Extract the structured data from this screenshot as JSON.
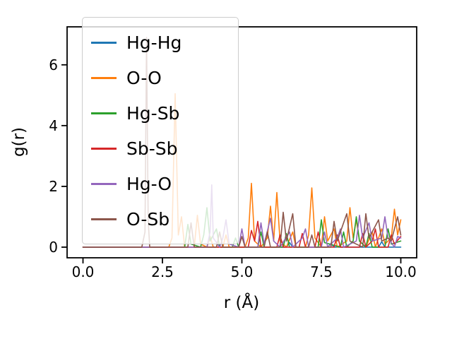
{
  "chart_data": {
    "type": "line",
    "title": "",
    "xlabel": "r (Å)",
    "ylabel": "g(r)",
    "xlim": [
      -0.5,
      10.5
    ],
    "ylim": [
      -0.35,
      7.25
    ],
    "xticks": [
      0.0,
      2.5,
      5.0,
      7.5,
      10.0
    ],
    "xtick_labels": [
      "0.0",
      "2.5",
      "5.0",
      "7.5",
      "10.0"
    ],
    "yticks": [
      0,
      2,
      4,
      6
    ],
    "ytick_labels": [
      "0",
      "2",
      "4",
      "6"
    ],
    "grid": false,
    "legend": {
      "position": "upper left",
      "framealpha": 0.8
    },
    "series": [
      {
        "name": "Hg-Hg",
        "color": "#1f77b4",
        "points": [
          [
            0,
            0
          ],
          [
            6.4,
            0
          ],
          [
            6.5,
            0.15
          ],
          [
            6.6,
            0
          ],
          [
            7.7,
            0
          ],
          [
            7.8,
            0.12
          ],
          [
            7.9,
            0
          ],
          [
            9.3,
            0
          ],
          [
            9.4,
            0.18
          ],
          [
            9.5,
            0
          ],
          [
            10,
            0
          ]
        ]
      },
      {
        "name": "O-O",
        "color": "#ff7f0e",
        "points": [
          [
            0,
            0
          ],
          [
            2.7,
            0
          ],
          [
            2.8,
            0.3
          ],
          [
            2.9,
            5.05
          ],
          [
            3.0,
            0.4
          ],
          [
            3.1,
            1.0
          ],
          [
            3.2,
            0
          ],
          [
            3.5,
            0
          ],
          [
            3.6,
            1.05
          ],
          [
            3.7,
            0.1
          ],
          [
            3.9,
            0
          ],
          [
            4.0,
            0.35
          ],
          [
            4.1,
            0
          ],
          [
            4.4,
            0
          ],
          [
            4.5,
            0.4
          ],
          [
            4.6,
            0
          ],
          [
            5.1,
            0
          ],
          [
            5.2,
            0.3
          ],
          [
            5.3,
            2.1
          ],
          [
            5.4,
            0.2
          ],
          [
            5.6,
            0
          ],
          [
            5.8,
            0.3
          ],
          [
            5.9,
            1.35
          ],
          [
            6.0,
            0.2
          ],
          [
            6.1,
            1.8
          ],
          [
            6.2,
            0.2
          ],
          [
            6.4,
            0
          ],
          [
            6.6,
            0.5
          ],
          [
            6.7,
            0
          ],
          [
            7.0,
            0
          ],
          [
            7.1,
            0.4
          ],
          [
            7.2,
            1.95
          ],
          [
            7.3,
            0.3
          ],
          [
            7.5,
            0
          ],
          [
            7.6,
            1.0
          ],
          [
            7.7,
            0.2
          ],
          [
            7.9,
            0.6
          ],
          [
            8.0,
            0
          ],
          [
            8.3,
            0.2
          ],
          [
            8.4,
            1.3
          ],
          [
            8.5,
            0.3
          ],
          [
            8.6,
            0.9
          ],
          [
            8.7,
            0.2
          ],
          [
            8.9,
            0
          ],
          [
            9.1,
            0.5
          ],
          [
            9.2,
            0
          ],
          [
            9.4,
            0.6
          ],
          [
            9.5,
            0.1
          ],
          [
            9.7,
            0.3
          ],
          [
            9.8,
            1.25
          ],
          [
            9.9,
            0.4
          ],
          [
            10,
            0.9
          ]
        ]
      },
      {
        "name": "Hg-Sb",
        "color": "#2ca02c",
        "points": [
          [
            0,
            0
          ],
          [
            3.2,
            0
          ],
          [
            3.3,
            0.75
          ],
          [
            3.4,
            0.1
          ],
          [
            3.7,
            0
          ],
          [
            3.8,
            0.4
          ],
          [
            3.9,
            1.3
          ],
          [
            4.0,
            0.2
          ],
          [
            4.2,
            0.6
          ],
          [
            4.3,
            0
          ],
          [
            4.7,
            0
          ],
          [
            4.8,
            0.3
          ],
          [
            4.9,
            0
          ],
          [
            5.5,
            0
          ],
          [
            5.6,
            0.5
          ],
          [
            5.7,
            0
          ],
          [
            6.3,
            0
          ],
          [
            6.4,
            0.45
          ],
          [
            6.5,
            0
          ],
          [
            7.4,
            0
          ],
          [
            7.5,
            0.9
          ],
          [
            7.6,
            0.15
          ],
          [
            8.1,
            0
          ],
          [
            8.2,
            0.5
          ],
          [
            8.3,
            0
          ],
          [
            8.5,
            0.2
          ],
          [
            8.6,
            1.0
          ],
          [
            8.7,
            0.2
          ],
          [
            8.9,
            0
          ],
          [
            9.0,
            0.45
          ],
          [
            9.1,
            0
          ],
          [
            9.5,
            0
          ],
          [
            9.6,
            0.6
          ],
          [
            9.7,
            0.1
          ],
          [
            10,
            0.2
          ]
        ]
      },
      {
        "name": "Sb-Sb",
        "color": "#d62728",
        "points": [
          [
            0,
            0
          ],
          [
            5.2,
            0
          ],
          [
            5.3,
            0.55
          ],
          [
            5.4,
            0.2
          ],
          [
            5.5,
            0.85
          ],
          [
            5.6,
            0
          ],
          [
            6.1,
            0
          ],
          [
            6.2,
            0.4
          ],
          [
            6.3,
            0
          ],
          [
            6.8,
            0
          ],
          [
            6.9,
            0.45
          ],
          [
            7.0,
            0
          ],
          [
            7.3,
            0
          ],
          [
            7.4,
            0.5
          ],
          [
            7.5,
            0
          ],
          [
            7.9,
            0
          ],
          [
            8.0,
            0.4
          ],
          [
            8.1,
            0
          ],
          [
            8.7,
            0
          ],
          [
            8.8,
            0.45
          ],
          [
            8.9,
            0
          ],
          [
            9.1,
            0.2
          ],
          [
            9.2,
            0.6
          ],
          [
            9.3,
            0
          ],
          [
            9.6,
            0
          ],
          [
            9.7,
            0.4
          ],
          [
            9.8,
            0.1
          ],
          [
            10,
            0.35
          ]
        ]
      },
      {
        "name": "Hg-O",
        "color": "#9467bd",
        "points": [
          [
            0,
            0
          ],
          [
            3.9,
            0
          ],
          [
            4.0,
            0.5
          ],
          [
            4.05,
            2.05
          ],
          [
            4.1,
            0.3
          ],
          [
            4.3,
            0
          ],
          [
            4.4,
            0.3
          ],
          [
            4.5,
            0.9
          ],
          [
            4.6,
            0.1
          ],
          [
            4.9,
            0
          ],
          [
            5.0,
            0.6
          ],
          [
            5.1,
            0
          ],
          [
            5.5,
            0
          ],
          [
            5.6,
            0.8
          ],
          [
            5.7,
            0.1
          ],
          [
            5.9,
            0.95
          ],
          [
            6.0,
            0.2
          ],
          [
            6.2,
            0
          ],
          [
            6.5,
            0.5
          ],
          [
            6.6,
            0
          ],
          [
            6.9,
            0.3
          ],
          [
            7.0,
            0.6
          ],
          [
            7.1,
            0
          ],
          [
            7.5,
            0
          ],
          [
            7.6,
            0.5
          ],
          [
            7.7,
            0
          ],
          [
            8.0,
            0.3
          ],
          [
            8.1,
            0.6
          ],
          [
            8.2,
            0
          ],
          [
            8.6,
            0.2
          ],
          [
            8.7,
            1.05
          ],
          [
            8.8,
            0.3
          ],
          [
            9.0,
            0.8
          ],
          [
            9.1,
            0.2
          ],
          [
            9.4,
            0.3
          ],
          [
            9.5,
            1.0
          ],
          [
            9.6,
            0.3
          ],
          [
            9.8,
            0
          ],
          [
            9.9,
            0.35
          ],
          [
            10,
            0.3
          ]
        ]
      },
      {
        "name": "O-Sb",
        "color": "#8c564b",
        "points": [
          [
            0,
            0
          ],
          [
            1.85,
            0
          ],
          [
            1.95,
            0.5
          ],
          [
            2.0,
            6.9
          ],
          [
            2.05,
            0.9
          ],
          [
            2.1,
            0
          ],
          [
            3.3,
            0
          ],
          [
            3.4,
            0.8
          ],
          [
            3.5,
            0
          ],
          [
            4.2,
            0
          ],
          [
            4.3,
            0.5
          ],
          [
            4.4,
            0
          ],
          [
            4.9,
            0
          ],
          [
            5.0,
            0.35
          ],
          [
            5.1,
            0
          ],
          [
            5.7,
            0
          ],
          [
            5.8,
            0.5
          ],
          [
            5.9,
            0
          ],
          [
            6.2,
            0
          ],
          [
            6.3,
            1.15
          ],
          [
            6.4,
            0.2
          ],
          [
            6.6,
            1.1
          ],
          [
            6.7,
            0
          ],
          [
            7.1,
            0
          ],
          [
            7.2,
            0.4
          ],
          [
            7.3,
            0
          ],
          [
            7.8,
            0
          ],
          [
            7.9,
            0.85
          ],
          [
            8.0,
            0.2
          ],
          [
            8.3,
            1.1
          ],
          [
            8.4,
            0.2
          ],
          [
            8.8,
            0
          ],
          [
            8.9,
            1.1
          ],
          [
            9.0,
            0.3
          ],
          [
            9.3,
            0.9
          ],
          [
            9.4,
            0.2
          ],
          [
            9.6,
            0.3
          ],
          [
            9.7,
            0.2
          ],
          [
            9.9,
            1.0
          ],
          [
            10,
            0.4
          ]
        ]
      }
    ]
  }
}
